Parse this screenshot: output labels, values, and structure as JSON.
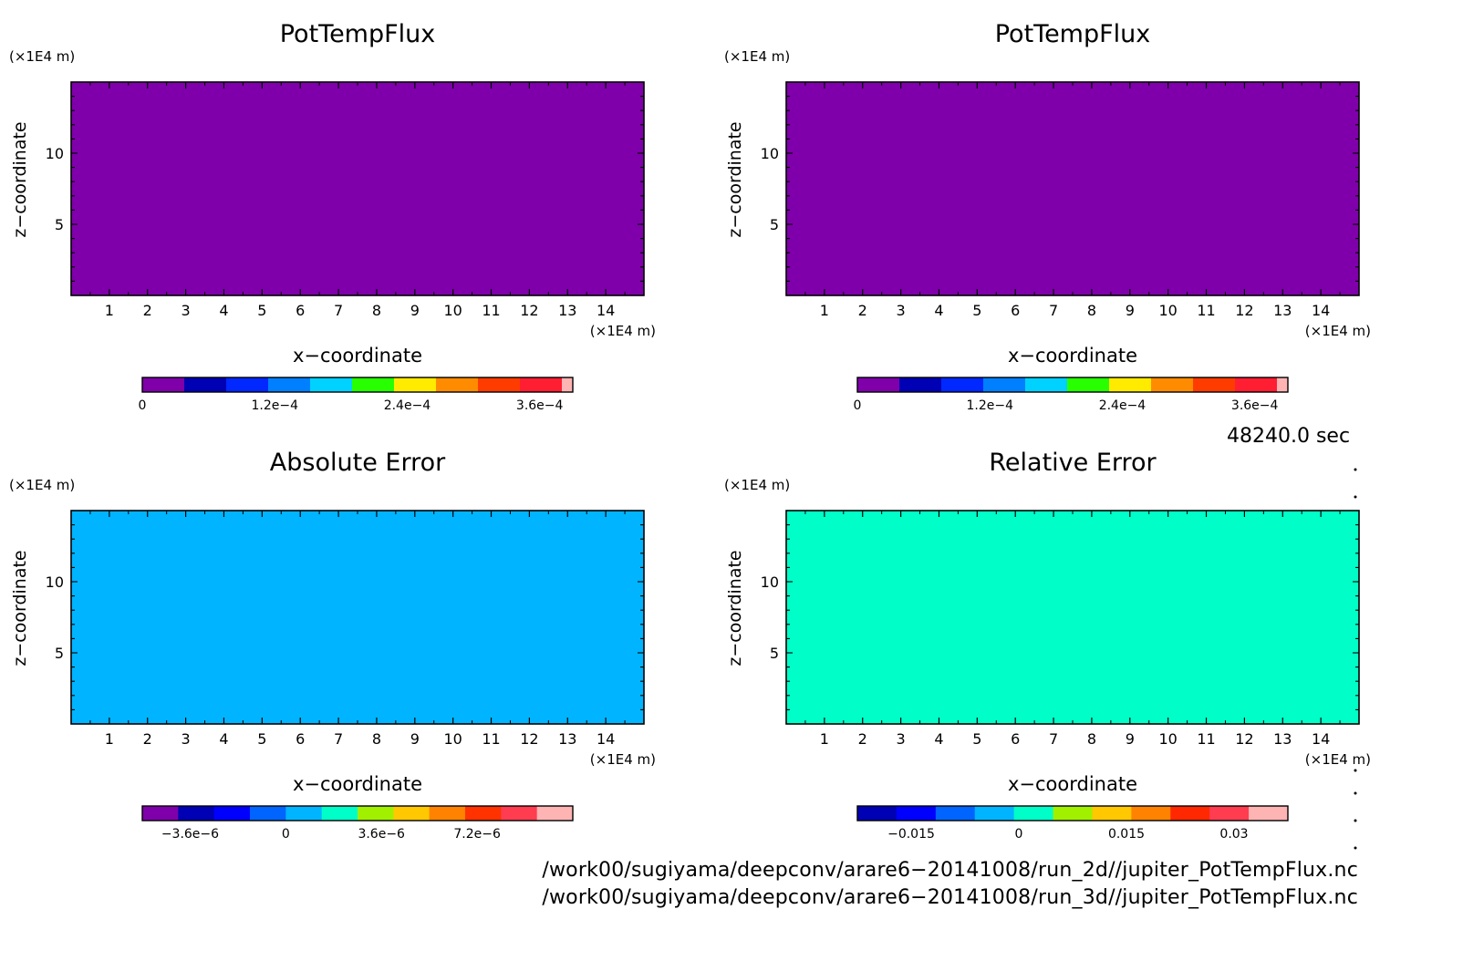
{
  "chart_data": [
    {
      "type": "heatmap",
      "title": "PotTempFlux",
      "xlabel": "x−coordinate",
      "ylabel": "z−coordinate",
      "x_unit": "(×1E4 m)",
      "y_unit": "(×1E4 m)",
      "xlim": [
        0,
        15
      ],
      "ylim": [
        0,
        15
      ],
      "xticks": [
        1,
        2,
        3,
        4,
        5,
        6,
        7,
        8,
        9,
        10,
        11,
        12,
        13,
        14
      ],
      "yticks": [
        5,
        10
      ],
      "field_value": 0,
      "field_color": "#7f00aa",
      "colorbar": {
        "colors": [
          "#7f00aa",
          "#0000b4",
          "#0028ff",
          "#0080ff",
          "#00d2ff",
          "#28ff00",
          "#ffeb00",
          "#ff8c00",
          "#ff3c00",
          "#ff1e32",
          "#ffb4b4"
        ],
        "last_small": true,
        "min": 0,
        "max": 0.00039,
        "tick_values": [
          0,
          0.00012,
          0.00024,
          0.00036
        ],
        "tick_labels": [
          "0",
          "1.2e−4",
          "2.4e−4",
          "3.6e−4"
        ]
      }
    },
    {
      "type": "heatmap",
      "title": "PotTempFlux",
      "xlabel": "x−coordinate",
      "ylabel": "z−coordinate",
      "x_unit": "(×1E4 m)",
      "y_unit": "(×1E4 m)",
      "xlim": [
        0,
        15
      ],
      "ylim": [
        0,
        15
      ],
      "xticks": [
        1,
        2,
        3,
        4,
        5,
        6,
        7,
        8,
        9,
        10,
        11,
        12,
        13,
        14
      ],
      "yticks": [
        5,
        10
      ],
      "field_value": 0,
      "field_color": "#7f00aa",
      "colorbar": {
        "colors": [
          "#7f00aa",
          "#0000b4",
          "#0028ff",
          "#0080ff",
          "#00d2ff",
          "#28ff00",
          "#ffeb00",
          "#ff8c00",
          "#ff3c00",
          "#ff1e32",
          "#ffb4b4"
        ],
        "last_small": true,
        "min": 0,
        "max": 0.00039,
        "tick_values": [
          0,
          0.00012,
          0.00024,
          0.00036
        ],
        "tick_labels": [
          "0",
          "1.2e−4",
          "2.4e−4",
          "3.6e−4"
        ]
      }
    },
    {
      "type": "heatmap",
      "title": "Absolute Error",
      "xlabel": "x−coordinate",
      "ylabel": "z−coordinate",
      "x_unit": "(×1E4 m)",
      "y_unit": "(×1E4 m)",
      "xlim": [
        0,
        15
      ],
      "ylim": [
        0,
        15
      ],
      "xticks": [
        1,
        2,
        3,
        4,
        5,
        6,
        7,
        8,
        9,
        10,
        11,
        12,
        13,
        14
      ],
      "yticks": [
        5,
        10
      ],
      "field_value": 0,
      "field_color": "#00b4ff",
      "colorbar": {
        "colors": [
          "#7f00aa",
          "#0000b4",
          "#0000ff",
          "#0064ff",
          "#00b4ff",
          "#00ffc8",
          "#a0f000",
          "#ffc800",
          "#ff8200",
          "#ff3200",
          "#ff3c50",
          "#ffb4b4"
        ],
        "last_small": false,
        "min": -5.4e-06,
        "max": 1.08e-05,
        "tick_values": [
          -3.6e-06,
          0,
          3.6e-06,
          7.2e-06
        ],
        "tick_labels": [
          "−3.6e−6",
          "0",
          "3.6e−6",
          "7.2e−6"
        ]
      }
    },
    {
      "type": "heatmap",
      "title": "Relative Error",
      "xlabel": "x−coordinate",
      "ylabel": "z−coordinate",
      "x_unit": "(×1E4 m)",
      "y_unit": "(×1E4 m)",
      "xlim": [
        0,
        15
      ],
      "ylim": [
        0,
        15
      ],
      "xticks": [
        1,
        2,
        3,
        4,
        5,
        6,
        7,
        8,
        9,
        10,
        11,
        12,
        13,
        14
      ],
      "yticks": [
        5,
        10
      ],
      "field_value": 0,
      "field_color": "#00ffc8",
      "colorbar": {
        "colors": [
          "#0000b4",
          "#0000ff",
          "#0064ff",
          "#00b4ff",
          "#00ffc8",
          "#a0f000",
          "#ffc800",
          "#ff8200",
          "#ff2800",
          "#ff3c50",
          "#ffb4b4"
        ],
        "last_small": false,
        "min": -0.0225,
        "max": 0.0375,
        "tick_values": [
          -0.015,
          0,
          0.015,
          0.03
        ],
        "tick_labels": [
          "−0.015",
          "0",
          "0.015",
          "0.03"
        ]
      }
    }
  ],
  "time_label": "48240.0 sec",
  "files": [
    "/work00/sugiyama/deepconv/arare6−20141008/run_2d//jupiter_PotTempFlux.nc",
    "/work00/sugiyama/deepconv/arare6−20141008/run_3d//jupiter_PotTempFlux.nc"
  ]
}
